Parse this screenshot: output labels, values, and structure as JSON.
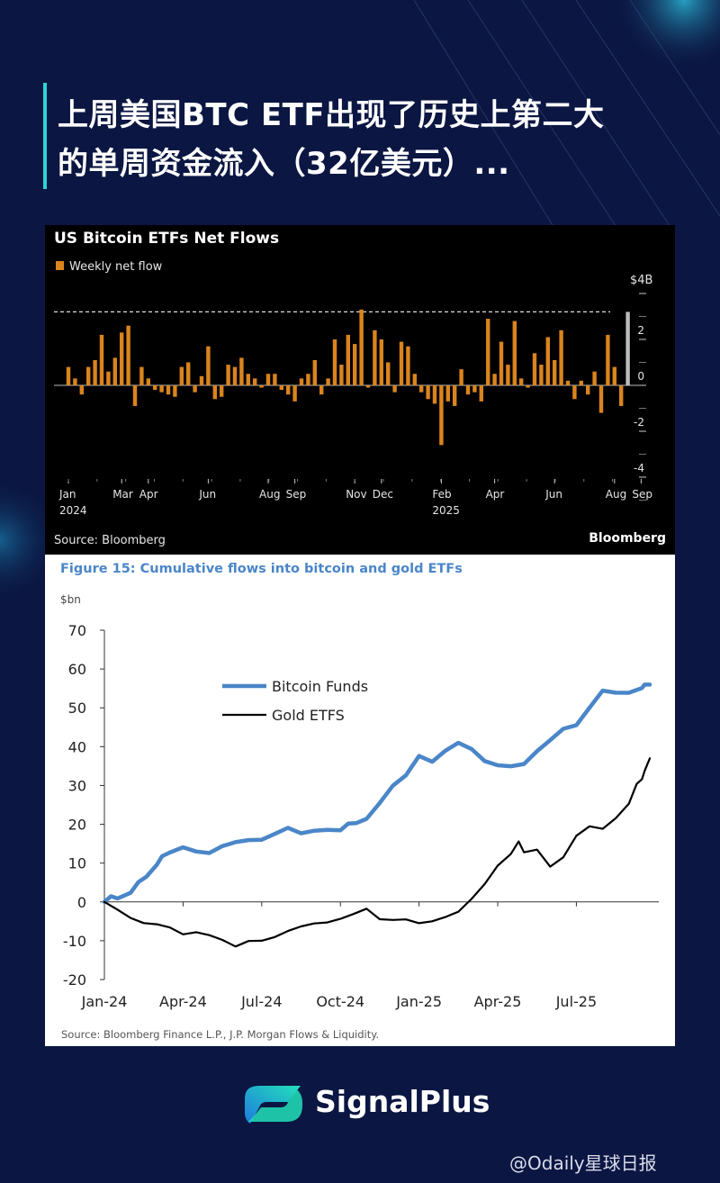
{
  "headline": {
    "line1": "上周美国BTC ETF出现了历史上第二大",
    "line2": "的单周资金流入（32亿美元）..."
  },
  "chart_data": [
    {
      "type": "bar",
      "title": "US Bitcoin ETFs Net Flows",
      "legend": "Weekly net flow",
      "y_unit_label": "$4B",
      "yticks": [
        4,
        2,
        0,
        -2,
        -4
      ],
      "ytick_labels": [
        "",
        "2",
        "0",
        "-2",
        "-4"
      ],
      "ylim": [
        -4.4,
        4.4
      ],
      "reference_line": 3.2,
      "xticks": [
        {
          "label": "Jan",
          "year": "2024",
          "week": 1
        },
        {
          "label": "Mar",
          "week": 9
        },
        {
          "label": "Apr",
          "week": 13
        },
        {
          "label": "Jun",
          "week": 22
        },
        {
          "label": "Aug",
          "week": 31
        },
        {
          "label": "Sep",
          "week": 35
        },
        {
          "label": "Nov",
          "week": 44
        },
        {
          "label": "Dec",
          "week": 48
        },
        {
          "label": "Feb",
          "year": "2025",
          "week": 57
        },
        {
          "label": "Apr",
          "week": 65
        },
        {
          "label": "Jun",
          "week": 74
        },
        {
          "label": "Aug",
          "week": 83
        },
        {
          "label": "Sep",
          "week": 87
        }
      ],
      "values": [
        0.8,
        0.3,
        -0.4,
        0.8,
        1.1,
        2.2,
        0.6,
        1.2,
        2.3,
        2.6,
        -0.9,
        0.8,
        0.3,
        -0.2,
        -0.3,
        -0.4,
        -0.5,
        0.8,
        1.0,
        -0.3,
        0.4,
        1.7,
        -0.6,
        -0.5,
        0.9,
        0.8,
        1.2,
        0.5,
        0.3,
        -0.1,
        0.5,
        0.5,
        -0.2,
        -0.4,
        -0.7,
        0.3,
        0.5,
        1.1,
        -0.4,
        0.3,
        2.0,
        0.9,
        2.2,
        1.8,
        3.3,
        -0.1,
        2.4,
        2.0,
        1.0,
        -0.3,
        1.9,
        1.7,
        0.5,
        -0.3,
        -0.6,
        -0.8,
        -2.6,
        -0.7,
        -0.9,
        0.7,
        -0.4,
        -0.3,
        -0.7,
        2.9,
        0.5,
        1.9,
        0.9,
        2.8,
        0.3,
        -0.1,
        1.4,
        0.9,
        2.1,
        1.1,
        2.4,
        0.2,
        -0.6,
        0.2,
        -0.4,
        0.6,
        -1.2,
        2.2,
        0.8,
        -0.9,
        3.2
      ],
      "highlight_last": true,
      "source": "Source: Bloomberg",
      "brand": "Bloomberg",
      "colors": {
        "bar": "#d9841d",
        "highlight": "#bdbdbd",
        "background": "#000000"
      }
    },
    {
      "type": "line",
      "title": "Figure 15: Cumulative flows into bitcoin and gold ETFs",
      "ylabel": "$bn",
      "ylim": [
        -20,
        70
      ],
      "yticks": [
        70,
        60,
        50,
        40,
        30,
        20,
        10,
        0,
        -10,
        -20
      ],
      "xticks": [
        {
          "label": "Jan-24",
          "month": 0
        },
        {
          "label": "Apr-24",
          "month": 3
        },
        {
          "label": "Jul-24",
          "month": 6
        },
        {
          "label": "Oct-24",
          "month": 9
        },
        {
          "label": "Jan-25",
          "month": 12
        },
        {
          "label": "Apr-25",
          "month": 15
        },
        {
          "label": "Jul-25",
          "month": 18
        }
      ],
      "x_max": 20.8,
      "series": [
        {
          "name": "Bitcoin Funds",
          "color": "#4a86c8",
          "points": [
            [
              0,
              0
            ],
            [
              0.25,
              1
            ],
            [
              0.5,
              1.5
            ],
            [
              1,
              2
            ],
            [
              1.3,
              5
            ],
            [
              1.6,
              7
            ],
            [
              2,
              9
            ],
            [
              2.2,
              12
            ],
            [
              2.5,
              13
            ],
            [
              3,
              13.5
            ],
            [
              3.5,
              13.5
            ],
            [
              4,
              12.5
            ],
            [
              4.5,
              14
            ],
            [
              5,
              16
            ],
            [
              5.5,
              15.5
            ],
            [
              6,
              16
            ],
            [
              6.5,
              18
            ],
            [
              7,
              18.5
            ],
            [
              7.5,
              18
            ],
            [
              8,
              18.5
            ],
            [
              8.5,
              18
            ],
            [
              9,
              19
            ],
            [
              9.3,
              20
            ],
            [
              9.6,
              20
            ],
            [
              10,
              22
            ],
            [
              10.5,
              25
            ],
            [
              11,
              30
            ],
            [
              11.5,
              33
            ],
            [
              12,
              37
            ],
            [
              12.5,
              36.5
            ],
            [
              13,
              39
            ],
            [
              13.5,
              40.5
            ],
            [
              14,
              40
            ],
            [
              14.5,
              36
            ],
            [
              15,
              35
            ],
            [
              15.5,
              35.5
            ],
            [
              16,
              35
            ],
            [
              16.5,
              39
            ],
            [
              17,
              42
            ],
            [
              17.5,
              44
            ],
            [
              18,
              46
            ],
            [
              18.5,
              50
            ],
            [
              19,
              54
            ],
            [
              19.5,
              54.5
            ],
            [
              20,
              53.5
            ],
            [
              20.5,
              55
            ],
            [
              20.6,
              56.5
            ],
            [
              20.8,
              56
            ]
          ]
        },
        {
          "name": "Gold ETFS",
          "color": "#000000",
          "points": [
            [
              0,
              0
            ],
            [
              0.5,
              -2.5
            ],
            [
              1,
              -4
            ],
            [
              1.5,
              -5
            ],
            [
              2,
              -6
            ],
            [
              2.5,
              -7
            ],
            [
              3,
              -8
            ],
            [
              3.5,
              -7.5
            ],
            [
              4,
              -9
            ],
            [
              4.5,
              -10
            ],
            [
              5,
              -11
            ],
            [
              5.5,
              -10
            ],
            [
              6,
              -10.5
            ],
            [
              6.5,
              -9
            ],
            [
              7,
              -7
            ],
            [
              7.5,
              -6.5
            ],
            [
              8,
              -6
            ],
            [
              8.5,
              -5
            ],
            [
              9,
              -4
            ],
            [
              9.5,
              -3.5
            ],
            [
              10,
              -2
            ],
            [
              10.5,
              -4
            ],
            [
              11,
              -4.5
            ],
            [
              11.5,
              -5
            ],
            [
              12,
              -5.5
            ],
            [
              12.5,
              -4.5
            ],
            [
              13,
              -4
            ],
            [
              13.5,
              -3
            ],
            [
              14,
              1
            ],
            [
              14.5,
              5
            ],
            [
              15,
              9
            ],
            [
              15.5,
              12
            ],
            [
              15.8,
              16
            ],
            [
              16,
              13
            ],
            [
              16.5,
              13
            ],
            [
              17,
              9
            ],
            [
              17.5,
              12
            ],
            [
              18,
              17
            ],
            [
              18.5,
              19
            ],
            [
              19,
              19
            ],
            [
              19.5,
              22
            ],
            [
              20,
              25
            ],
            [
              20.3,
              30
            ],
            [
              20.5,
              32
            ],
            [
              20.6,
              34
            ],
            [
              20.8,
              37
            ]
          ]
        }
      ],
      "source": "Source: Bloomberg Finance L.P., J.P. Morgan Flows & Liquidity."
    }
  ],
  "brand": {
    "name": "SignalPlus"
  },
  "watermark": {
    "text": "@Odaily星球日报"
  },
  "colors": {
    "background": "#0b1642",
    "accent": "#2ed3d6",
    "brand_gradient_start": "#22e0b8",
    "brand_gradient_end": "#1f7ae0"
  }
}
